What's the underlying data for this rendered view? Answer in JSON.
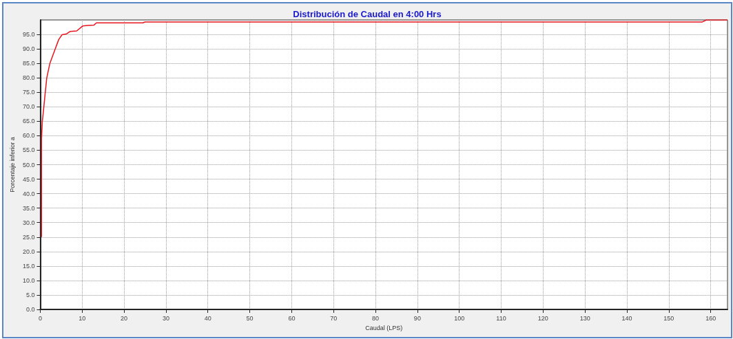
{
  "chart_data": {
    "type": "line",
    "title": "Distribución de Caudal en 4:00 Hrs",
    "xlabel": "Caudal (LPS)",
    "ylabel": "Porcentaje inferior a",
    "x": [
      0.3,
      0.3,
      0.5,
      0.86,
      1.2,
      1.56,
      2.3,
      3.4,
      4.4,
      5.2,
      6.3,
      7.1,
      8.7,
      10.1,
      11.4,
      12.8,
      13.4,
      24.5,
      25,
      158,
      159,
      164
    ],
    "series": [
      {
        "color": "#e8141e",
        "values": [
          25,
          59,
          65,
          70,
          75,
          80,
          85,
          89.3,
          93.2,
          94.9,
          95.2,
          96,
          96.2,
          97.9,
          98.1,
          98.2,
          99,
          99,
          99.3,
          99.3,
          100,
          100
        ]
      }
    ],
    "xlim": [
      0,
      164
    ],
    "xticks": [
      0,
      10,
      20,
      30,
      40,
      50,
      60,
      70,
      80,
      90,
      100,
      110,
      120,
      130,
      140,
      150,
      160
    ],
    "ylim": [
      0,
      100
    ],
    "yticks": [
      {
        "value": 0,
        "label": "0.0"
      },
      {
        "value": 5,
        "label": "5.0"
      },
      {
        "value": 10,
        "label": "10.0"
      },
      {
        "value": 15,
        "label": "15.0"
      },
      {
        "value": 20,
        "label": "20.0"
      },
      {
        "value": 25,
        "label": "25.0"
      },
      {
        "value": 30,
        "label": "30.0"
      },
      {
        "value": 35,
        "label": "35.0"
      },
      {
        "value": 40,
        "label": "40.0"
      },
      {
        "value": 45,
        "label": "45.0"
      },
      {
        "value": 50,
        "label": "50.0"
      },
      {
        "value": 55,
        "label": "55.0"
      },
      {
        "value": 60,
        "label": "60.0"
      },
      {
        "value": 65,
        "label": "65.0"
      },
      {
        "value": 70,
        "label": "70.0"
      },
      {
        "value": 75,
        "label": "75.0"
      },
      {
        "value": 80,
        "label": "80.0"
      },
      {
        "value": 85,
        "label": "85.0"
      },
      {
        "value": 90,
        "label": "90.0"
      },
      {
        "value": 95,
        "label": "95.0"
      }
    ],
    "grid": true,
    "marker": "none",
    "line_style": "solid"
  }
}
